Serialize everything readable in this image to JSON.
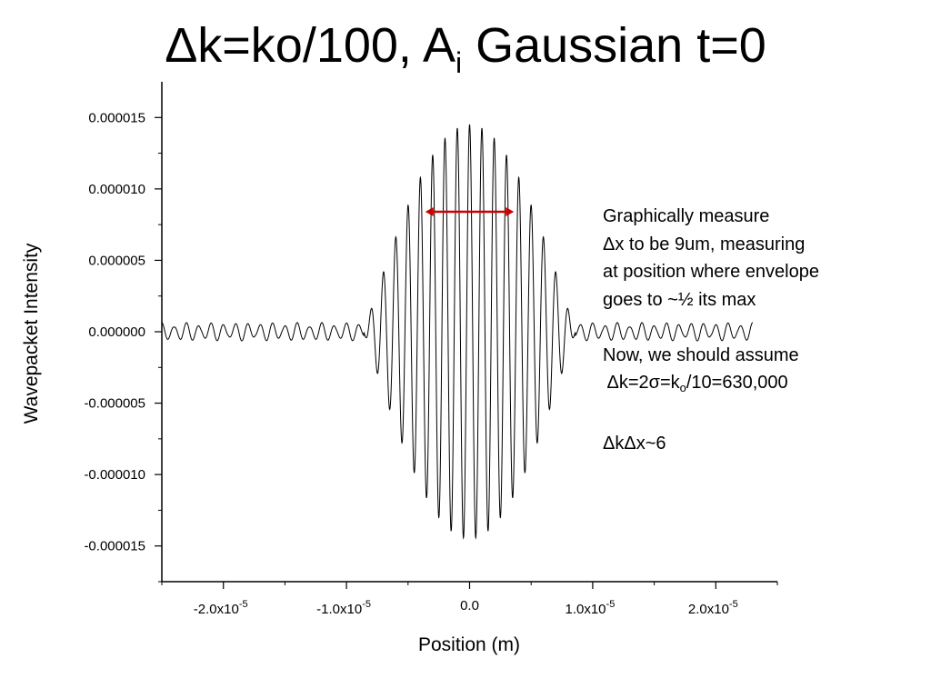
{
  "slide": {
    "title_main": "Δk=ko/100, A",
    "title_sub": "i",
    "title_rest": " Gaussian t=0"
  },
  "notes": {
    "lines": [
      "Graphically measure",
      "Δx to be 9um, measuring",
      "at position where envelope",
      "goes to ~½ its max",
      "",
      "Now, we should assume"
    ],
    "dk_prefix": " Δk=2σ=k",
    "dk_sub": "o",
    "dk_suffix": "/10=630,000",
    "product": "ΔkΔx~6"
  },
  "chart_data": {
    "type": "line",
    "title": "Δk=ko/100, Ai Gaussian t=0",
    "xlabel": "Position (m)",
    "ylabel": "Wavepacket Intensity",
    "xlim": [
      -2.5e-05,
      2.5e-05
    ],
    "ylim": [
      -1.75e-05,
      1.75e-05
    ],
    "x_ticks": [
      {
        "value": -2e-05,
        "base": "-2.0x10",
        "exp": "-5"
      },
      {
        "value": -1e-05,
        "base": "-1.0x10",
        "exp": "-5"
      },
      {
        "value": 0,
        "base": "0.0",
        "exp": ""
      },
      {
        "value": 1e-05,
        "base": "1.0x10",
        "exp": "-5"
      },
      {
        "value": 2e-05,
        "base": "2.0x10",
        "exp": "-5"
      }
    ],
    "y_ticks": [
      {
        "value": 1.5e-05,
        "label": "0.000015"
      },
      {
        "value": 1e-05,
        "label": "0.000010"
      },
      {
        "value": 5e-06,
        "label": "0.000005"
      },
      {
        "value": 0.0,
        "label": "0.000000"
      },
      {
        "value": -5e-06,
        "label": "-0.000005"
      },
      {
        "value": -1e-05,
        "label": "-0.000010"
      },
      {
        "value": -1.5e-05,
        "label": "-0.000015"
      }
    ],
    "series": [
      {
        "data_range_x": [
          -2.5e-05,
          2.3e-05
        ],
        "peak_amplitude": 1.45e-05,
        "carrier_wavelength_m": 1e-06,
        "main_lobe_half_width_m": 8.6e-06,
        "sidelobe_amplitude": 4e-07,
        "color": "#000000"
      }
    ],
    "annotation": {
      "type": "double-arrow",
      "x_from": -3.6e-06,
      "x_to": 3.6e-06,
      "y": 8.4e-06,
      "color": "#cc0000"
    },
    "grid": false,
    "legend": "none"
  }
}
